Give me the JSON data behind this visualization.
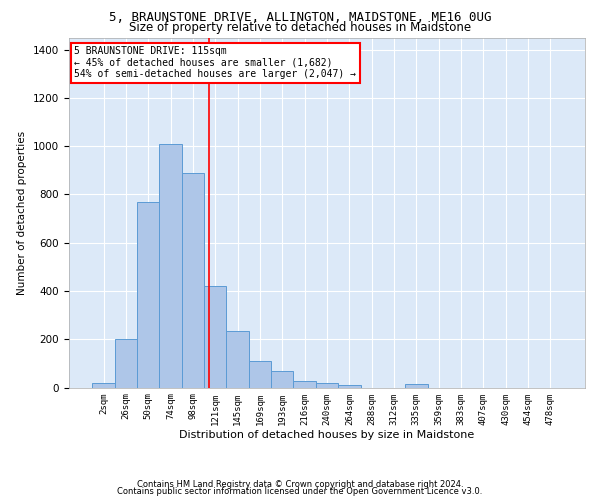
{
  "title": "5, BRAUNSTONE DRIVE, ALLINGTON, MAIDSTONE, ME16 0UG",
  "subtitle": "Size of property relative to detached houses in Maidstone",
  "xlabel": "Distribution of detached houses by size in Maidstone",
  "ylabel": "Number of detached properties",
  "footnote1": "Contains HM Land Registry data © Crown copyright and database right 2024.",
  "footnote2": "Contains public sector information licensed under the Open Government Licence v3.0.",
  "bar_labels": [
    "2sqm",
    "26sqm",
    "50sqm",
    "74sqm",
    "98sqm",
    "121sqm",
    "145sqm",
    "169sqm",
    "193sqm",
    "216sqm",
    "240sqm",
    "264sqm",
    "288sqm",
    "312sqm",
    "335sqm",
    "359sqm",
    "383sqm",
    "407sqm",
    "430sqm",
    "454sqm",
    "478sqm"
  ],
  "bar_values": [
    20,
    200,
    770,
    1010,
    890,
    420,
    235,
    110,
    70,
    25,
    20,
    10,
    0,
    0,
    15,
    0,
    0,
    0,
    0,
    0,
    0
  ],
  "bar_color": "#aec6e8",
  "bar_edge_color": "#5b9bd5",
  "vline_x": 3.5,
  "vline_color": "red",
  "annotation_text": "5 BRAUNSTONE DRIVE: 115sqm\n← 45% of detached houses are smaller (1,682)\n54% of semi-detached houses are larger (2,047) →",
  "annotation_box_color": "red",
  "ylim": [
    0,
    1450
  ],
  "yticks": [
    0,
    200,
    400,
    600,
    800,
    1000,
    1200,
    1400
  ],
  "background_color": "#dce9f8",
  "grid_color": "#ffffff",
  "title_fontsize": 9,
  "subtitle_fontsize": 8.5
}
